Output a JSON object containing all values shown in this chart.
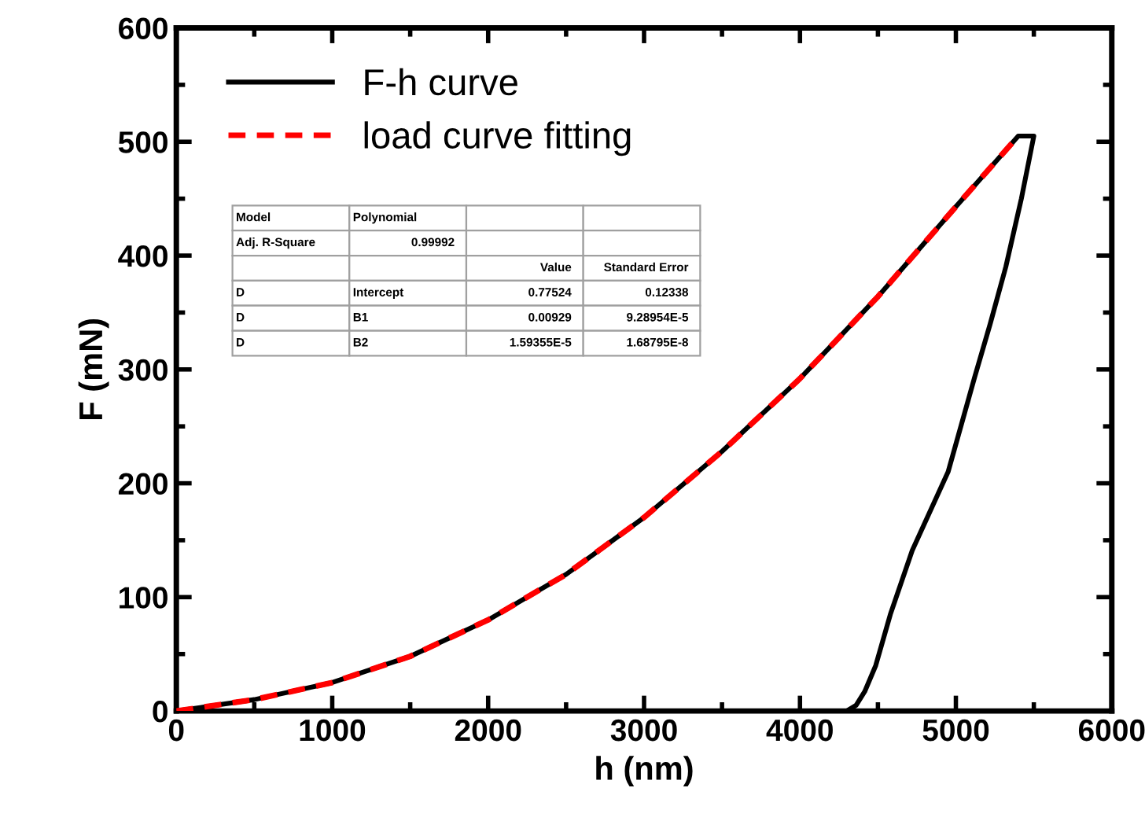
{
  "chart_data": {
    "type": "line",
    "xlabel": "h (nm)",
    "ylabel": "F (mN)",
    "xlim": [
      0,
      6000
    ],
    "ylim": [
      0,
      600
    ],
    "xticks": [
      0,
      1000,
      2000,
      3000,
      4000,
      5000,
      6000
    ],
    "yticks": [
      0,
      100,
      200,
      300,
      400,
      500,
      600
    ],
    "grid": false,
    "legend": "top left",
    "series": [
      {
        "name": "F-h curve",
        "color": "#000000",
        "line_style": "solid",
        "x": [
          0,
          500,
          1000,
          1500,
          2000,
          2500,
          3000,
          3500,
          4000,
          4500,
          5000,
          5400,
          5500,
          5420,
          5320,
          5220,
          5120,
          4950,
          4720,
          4580,
          4486,
          4415,
          4360,
          4300
        ],
        "values": [
          0,
          10,
          25,
          48,
          80,
          120,
          170,
          228,
          292,
          364,
          443,
          505,
          505,
          450,
          390,
          340,
          293,
          210,
          141,
          85,
          40,
          17,
          5,
          0
        ]
      },
      {
        "name": "load curve fitting",
        "color": "#ff0000",
        "line_style": "dashed",
        "x": [
          0,
          500,
          1000,
          1500,
          2000,
          2500,
          3000,
          3500,
          4000,
          4500,
          5000,
          5400
        ],
        "values": [
          0,
          10,
          25,
          48,
          80,
          120,
          170,
          228,
          292,
          364,
          443,
          505
        ]
      }
    ],
    "annotations": [
      "Model\tPolynomial\t\t",
      "Adj. R-Square\t0.99992\t\t",
      "\t\tValue\tStandard Error",
      "D\tIntercept\t0.77524\t0.12338",
      "D\tB1\t0.00929\t9.28954E-5",
      "D\tB2\t1.59355E-5\t1.68795E-8"
    ]
  }
}
